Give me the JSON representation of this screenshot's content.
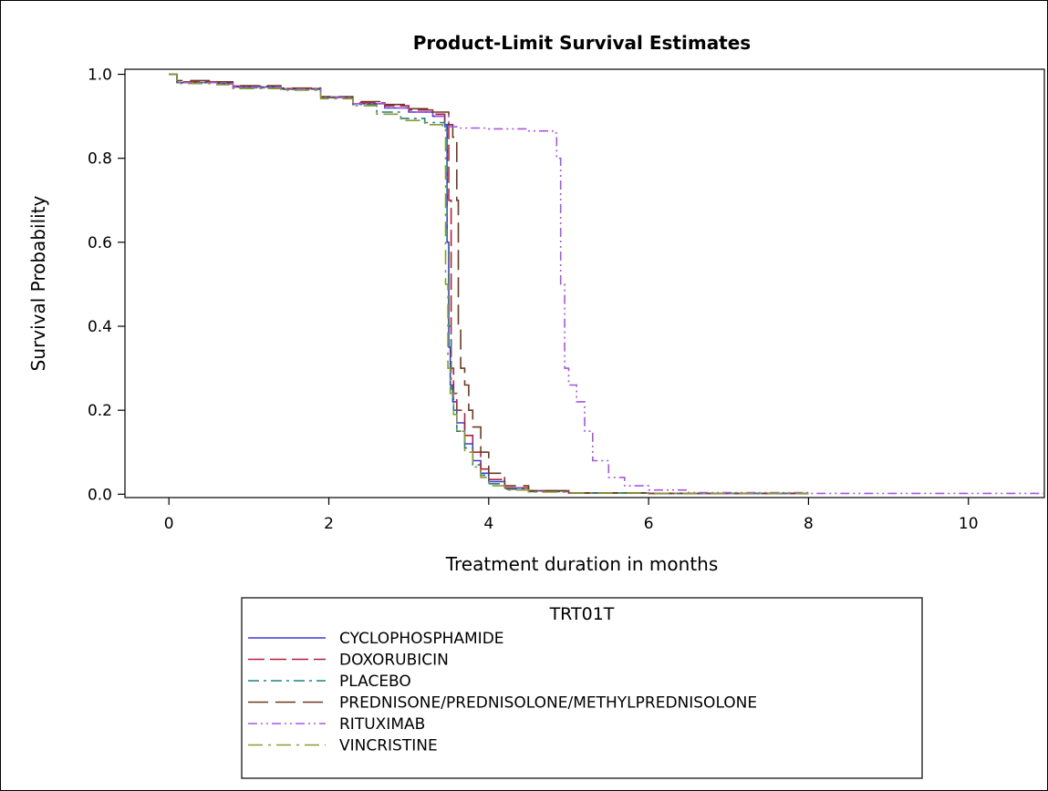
{
  "chart_data": {
    "type": "line",
    "title": "Product-Limit Survival Estimates",
    "xlabel": "Treatment duration in months",
    "ylabel": "Survival Probability",
    "xlim": [
      -0.55,
      10.95
    ],
    "ylim": [
      -0.008,
      1.012
    ],
    "xticks": [
      0,
      2,
      4,
      6,
      8,
      10
    ],
    "yticks": [
      0.0,
      0.2,
      0.4,
      0.6,
      0.8,
      1.0
    ],
    "ytick_labels": [
      "0.0",
      "0.2",
      "0.4",
      "0.6",
      "0.8",
      "1.0"
    ],
    "grid": false,
    "legend": {
      "title": "TRT01T",
      "placement": "bottom"
    },
    "series": [
      {
        "name": "CYCLOPHOSPHAMIDE",
        "color": "#3b3bd6",
        "dash": "solid",
        "x": [
          0,
          0.1,
          0.6,
          0.8,
          1.4,
          1.9,
          2.3,
          2.7,
          3.0,
          3.3,
          3.45,
          3.48,
          3.5,
          3.52,
          3.55,
          3.6,
          3.7,
          3.8,
          3.9,
          4.0,
          4.2,
          4.5,
          5.0,
          6.0,
          8.0
        ],
        "y": [
          1.0,
          0.98,
          0.978,
          0.97,
          0.965,
          0.945,
          0.93,
          0.92,
          0.91,
          0.9,
          0.88,
          0.6,
          0.35,
          0.26,
          0.22,
          0.17,
          0.12,
          0.08,
          0.05,
          0.03,
          0.015,
          0.008,
          0.003,
          0.002,
          0.002
        ]
      },
      {
        "name": "DOXORUBICIN",
        "color": "#b02040",
        "dash": "long-dash",
        "x": [
          0,
          0.1,
          0.6,
          0.8,
          1.4,
          1.9,
          2.3,
          2.7,
          3.0,
          3.3,
          3.45,
          3.5,
          3.53,
          3.56,
          3.6,
          3.7,
          3.8,
          3.9,
          4.0,
          4.2,
          4.5,
          5.0,
          6.0,
          8.0
        ],
        "y": [
          1.0,
          0.982,
          0.98,
          0.972,
          0.966,
          0.946,
          0.932,
          0.925,
          0.915,
          0.905,
          0.89,
          0.7,
          0.3,
          0.24,
          0.2,
          0.14,
          0.1,
          0.06,
          0.035,
          0.015,
          0.008,
          0.003,
          0.002,
          0.002
        ]
      },
      {
        "name": "PLACEBO",
        "color": "#1f8080",
        "dash": "dash-dot",
        "x": [
          0,
          0.1,
          0.6,
          0.8,
          1.4,
          1.9,
          2.3,
          2.6,
          2.9,
          3.2,
          3.45,
          3.48,
          3.5,
          3.53,
          3.56,
          3.6,
          3.7,
          3.8,
          3.9,
          4.0,
          4.2,
          4.5,
          5.0,
          6.0,
          8.0
        ],
        "y": [
          1.0,
          0.98,
          0.977,
          0.968,
          0.964,
          0.944,
          0.928,
          0.91,
          0.895,
          0.885,
          0.875,
          0.6,
          0.4,
          0.25,
          0.2,
          0.15,
          0.11,
          0.07,
          0.045,
          0.025,
          0.012,
          0.006,
          0.003,
          0.002,
          0.002
        ]
      },
      {
        "name": "PREDNISONE/PREDNISOLONE/METHYLPREDNISOLONE",
        "color": "#6b3a1f",
        "dash": "long-dash-wide",
        "x": [
          0,
          0.1,
          0.6,
          0.8,
          1.4,
          1.9,
          2.3,
          2.7,
          3.0,
          3.3,
          3.5,
          3.55,
          3.6,
          3.62,
          3.65,
          3.7,
          3.75,
          3.8,
          3.9,
          4.0,
          4.2,
          4.5,
          5.0,
          6.0,
          8.0
        ],
        "y": [
          1.0,
          0.985,
          0.982,
          0.973,
          0.967,
          0.947,
          0.935,
          0.928,
          0.918,
          0.91,
          0.88,
          0.85,
          0.7,
          0.4,
          0.3,
          0.26,
          0.2,
          0.16,
          0.1,
          0.05,
          0.02,
          0.008,
          0.003,
          0.002,
          0.002
        ]
      },
      {
        "name": "RITUXIMAB",
        "color": "#a855e0",
        "dash": "dash-dot-dot",
        "x": [
          0,
          0.1,
          0.6,
          0.8,
          1.4,
          1.9,
          2.3,
          2.7,
          3.0,
          3.3,
          3.5,
          3.6,
          4.0,
          4.5,
          4.8,
          4.85,
          4.9,
          4.95,
          5.0,
          5.1,
          5.2,
          5.3,
          5.5,
          5.7,
          6.0,
          6.5,
          8.0,
          10.95
        ],
        "y": [
          1.0,
          0.98,
          0.978,
          0.97,
          0.965,
          0.945,
          0.93,
          0.92,
          0.91,
          0.9,
          0.875,
          0.872,
          0.87,
          0.865,
          0.86,
          0.8,
          0.5,
          0.3,
          0.26,
          0.22,
          0.15,
          0.08,
          0.04,
          0.02,
          0.01,
          0.004,
          0.002,
          0.002
        ]
      },
      {
        "name": "VINCRISTINE",
        "color": "#8a9a30",
        "dash": "long-dash-dot",
        "x": [
          0,
          0.1,
          0.6,
          0.8,
          1.4,
          1.9,
          2.3,
          2.6,
          2.9,
          3.2,
          3.42,
          3.46,
          3.49,
          3.52,
          3.56,
          3.6,
          3.7,
          3.8,
          3.9,
          4.0,
          4.2,
          4.5,
          5.0,
          6.0,
          8.0
        ],
        "y": [
          1.0,
          0.978,
          0.975,
          0.966,
          0.962,
          0.942,
          0.925,
          0.905,
          0.89,
          0.88,
          0.87,
          0.5,
          0.3,
          0.24,
          0.19,
          0.15,
          0.1,
          0.065,
          0.04,
          0.02,
          0.01,
          0.005,
          0.003,
          0.002,
          0.002
        ]
      }
    ]
  }
}
